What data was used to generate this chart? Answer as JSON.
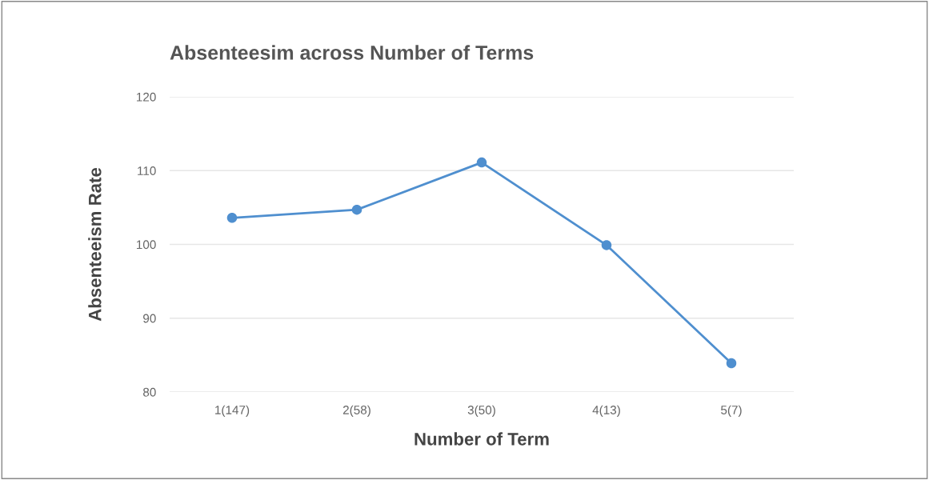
{
  "chart_data": {
    "type": "line",
    "title": "Absenteesim across Number of Terms",
    "xlabel": "Number of Term",
    "ylabel": "Absenteeism Rate",
    "categories": [
      "1(147)",
      "2(58)",
      "3(50)",
      "4(13)",
      "5(7)"
    ],
    "series": [
      {
        "color": "#4f8fcf",
        "values": [
          103.6,
          104.7,
          111.1,
          99.9,
          83.9
        ]
      }
    ],
    "ylim": [
      80,
      120
    ],
    "yticks": [
      80,
      90,
      100,
      110,
      120
    ],
    "grid": "y",
    "marker": "circle",
    "line_style": "solid"
  }
}
